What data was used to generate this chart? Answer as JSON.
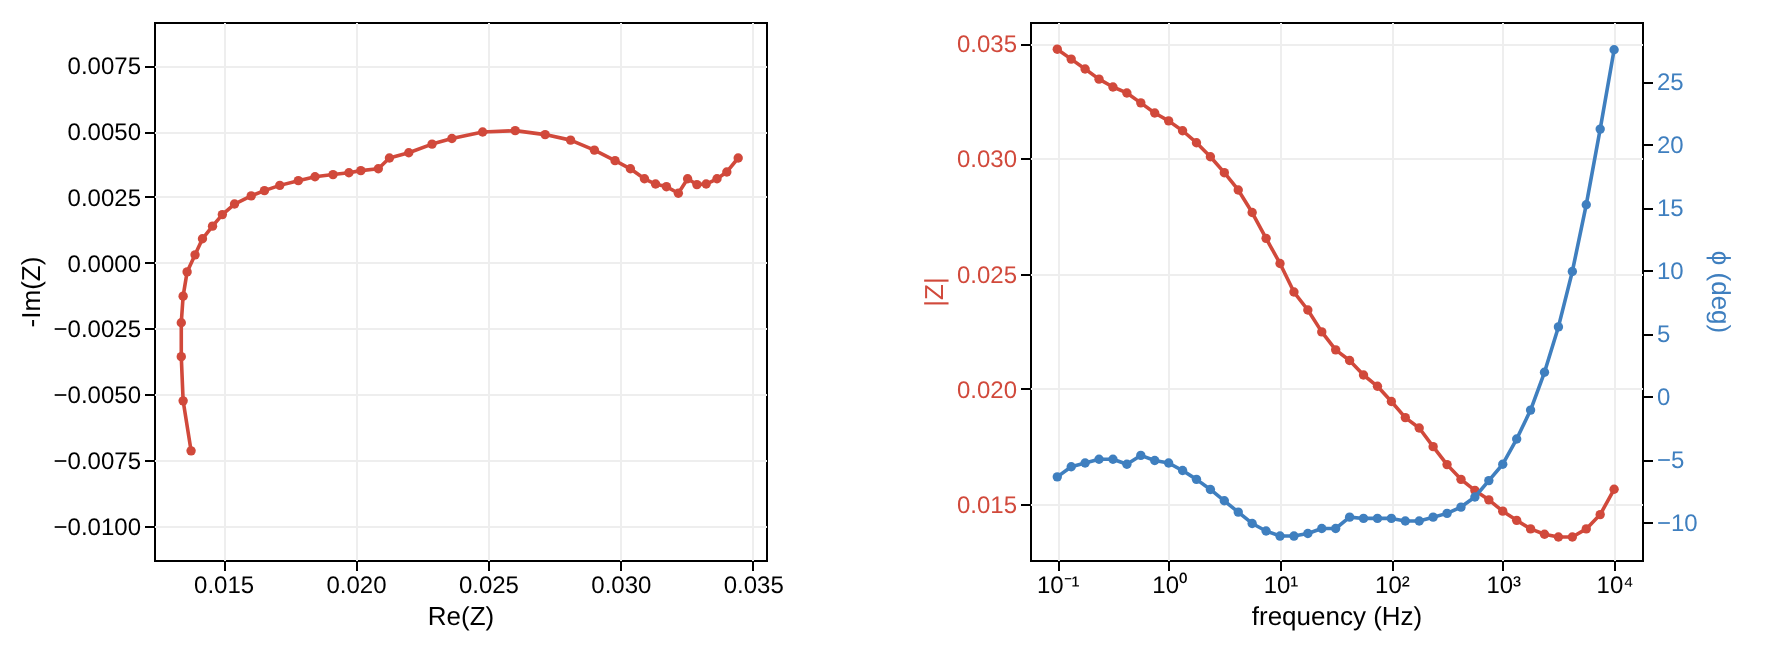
{
  "chart_data": [
    {
      "type": "line",
      "xlabel": "Re(Z)",
      "ylabel": "-Im(Z)",
      "marker": "circle",
      "grid": true,
      "x": [
        0.01379,
        0.01349,
        0.01342,
        0.01342,
        0.01349,
        0.01364,
        0.01394,
        0.01422,
        0.0146,
        0.01497,
        0.01543,
        0.01606,
        0.01656,
        0.01714,
        0.01784,
        0.01847,
        0.01915,
        0.01975,
        0.0202,
        0.02086,
        0.02128,
        0.02201,
        0.02289,
        0.02364,
        0.0248,
        0.02603,
        0.02716,
        0.02812,
        0.02902,
        0.0298,
        0.03038,
        0.03091,
        0.03133,
        0.03174,
        0.03219,
        0.03254,
        0.03289,
        0.03324,
        0.03365,
        0.03402,
        0.03445
      ],
      "series": [
        {
          "color": "#d1493b",
          "values": [
            -0.00715,
            -0.00525,
            -0.00357,
            -0.00228,
            -0.00127,
            -0.00035,
            0.0003,
            0.00091,
            0.00139,
            0.00183,
            0.00223,
            0.00254,
            0.00274,
            0.00294,
            0.00312,
            0.00327,
            0.00335,
            0.00342,
            0.0035,
            0.00357,
            0.00398,
            0.00418,
            0.00451,
            0.00472,
            0.00497,
            0.00502,
            0.00487,
            0.00466,
            0.00428,
            0.00388,
            0.00357,
            0.00319,
            0.00299,
            0.00289,
            0.00264,
            0.00319,
            0.00297,
            0.00299,
            0.00319,
            0.00345,
            0.00398
          ]
        }
      ],
      "xlim": [
        0.01239,
        0.0355
      ],
      "ylim": [
        -0.0113,
        0.00915
      ],
      "xticks": [
        {
          "value": 0.015,
          "label": "0.015"
        },
        {
          "value": 0.02,
          "label": "0.020"
        },
        {
          "value": 0.025,
          "label": "0.025"
        },
        {
          "value": 0.03,
          "label": "0.030"
        },
        {
          "value": 0.035,
          "label": "0.035"
        }
      ],
      "yticks": [
        {
          "value": -0.01,
          "label": "−0.0100"
        },
        {
          "value": -0.0075,
          "label": "−0.0075"
        },
        {
          "value": -0.005,
          "label": "−0.0050"
        },
        {
          "value": -0.0025,
          "label": "−0.0025"
        },
        {
          "value": 0,
          "label": "0.0000"
        },
        {
          "value": 0.0025,
          "label": "0.0025"
        },
        {
          "value": 0.005,
          "label": "0.0050"
        },
        {
          "value": 0.0075,
          "label": "0.0075"
        }
      ]
    },
    {
      "type": "line",
      "xlabel": "frequency (Hz)",
      "ylabel": "|Z|",
      "y2label": "ϕ (deg)",
      "marker": "circle",
      "grid": true,
      "log": "x",
      "x": [
        0.1,
        0.1334,
        0.1778,
        0.2371,
        0.3162,
        0.4217,
        0.5623,
        0.7499,
        1,
        1.334,
        1.778,
        2.371,
        3.162,
        4.217,
        5.623,
        7.499,
        10,
        13.34,
        17.78,
        23.71,
        31.62,
        42.17,
        56.23,
        74.99,
        100,
        133.4,
        177.8,
        237.1,
        316.2,
        421.7,
        562.3,
        749.9,
        1000,
        1334,
        1778,
        2371,
        3162,
        4217,
        5623,
        7499,
        10000
      ],
      "series": [
        {
          "color": "#d1493b",
          "values": [
            0.03474,
            0.03431,
            0.03388,
            0.03344,
            0.0331,
            0.03284,
            0.03241,
            0.03197,
            0.03163,
            0.0312,
            0.03068,
            0.03007,
            0.02938,
            0.02863,
            0.02765,
            0.02653,
            0.02544,
            0.0242,
            0.02342,
            0.02247,
            0.02169,
            0.02123,
            0.0206,
            0.02011,
            0.01945,
            0.01875,
            0.0183,
            0.01749,
            0.01671,
            0.01607,
            0.01559,
            0.01518,
            0.01469,
            0.01429,
            0.01392,
            0.01369,
            0.01357,
            0.01357,
            0.01392,
            0.01454,
            0.01564
          ]
        },
        {
          "color": "#3f7fbf",
          "axis": "y2",
          "values": [
            -6.4,
            -5.6,
            -5.3,
            -5,
            -5,
            -5.4,
            -4.7,
            -5.1,
            -5.3,
            -5.9,
            -6.6,
            -7.4,
            -8.3,
            -9.2,
            -10.1,
            -10.7,
            -11.1,
            -11.1,
            -10.9,
            -10.5,
            -10.5,
            -9.6,
            -9.7,
            -9.7,
            -9.7,
            -9.9,
            -9.9,
            -9.6,
            -9.3,
            -8.8,
            -8,
            -6.7,
            -5.4,
            -3.4,
            -1.1,
            1.9,
            5.5,
            9.9,
            15.2,
            21.2,
            27.5
          ]
        }
      ],
      "xlim": [
        0.0569,
        17800
      ],
      "ylim": [
        0.01257,
        0.03592
      ],
      "y2lim": [
        -13,
        29.7
      ],
      "xticks": [
        {
          "value": 0.1,
          "label": "10⁻¹"
        },
        {
          "value": 1,
          "label": "10⁰"
        },
        {
          "value": 10,
          "label": "10¹"
        },
        {
          "value": 100,
          "label": "10²"
        },
        {
          "value": 1000,
          "label": "10³"
        },
        {
          "value": 10000,
          "label": "10⁴"
        }
      ],
      "yticks": [
        {
          "value": 0.015,
          "label": "0.015"
        },
        {
          "value": 0.02,
          "label": "0.020"
        },
        {
          "value": 0.025,
          "label": "0.025"
        },
        {
          "value": 0.03,
          "label": "0.030"
        },
        {
          "value": 0.035,
          "label": "0.035"
        }
      ],
      "y2ticks": [
        {
          "value": -10,
          "label": "−10"
        },
        {
          "value": -5,
          "label": "−5"
        },
        0,
        5,
        10,
        15,
        20,
        25
      ]
    }
  ]
}
